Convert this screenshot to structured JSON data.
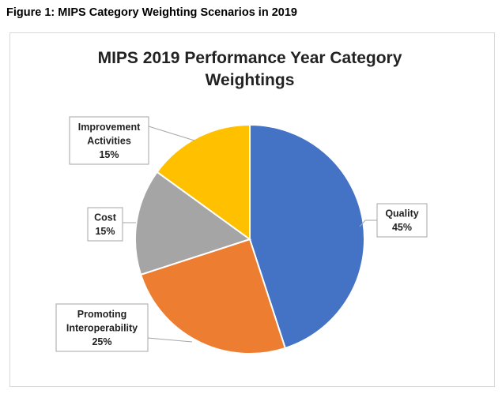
{
  "figure_caption": "Figure 1:  MIPS Category Weighting Scenarios in 2019",
  "chart_data": {
    "type": "pie",
    "title": [
      "MIPS 2019 Performance Year Category",
      "Weightings"
    ],
    "slices": [
      {
        "label": [
          "Quality"
        ],
        "value": 45,
        "value_label": "45%",
        "color": "#4472C4"
      },
      {
        "label": [
          "Promoting",
          "Interoperability"
        ],
        "value": 25,
        "value_label": "25%",
        "color": "#ED7D31"
      },
      {
        "label": [
          "Cost"
        ],
        "value": 15,
        "value_label": "15%",
        "color": "#A5A5A5"
      },
      {
        "label": [
          "Improvement",
          "Activities"
        ],
        "value": 15,
        "value_label": "15%",
        "color": "#FFC000"
      }
    ],
    "legend": "none",
    "data_labels": "callout"
  }
}
